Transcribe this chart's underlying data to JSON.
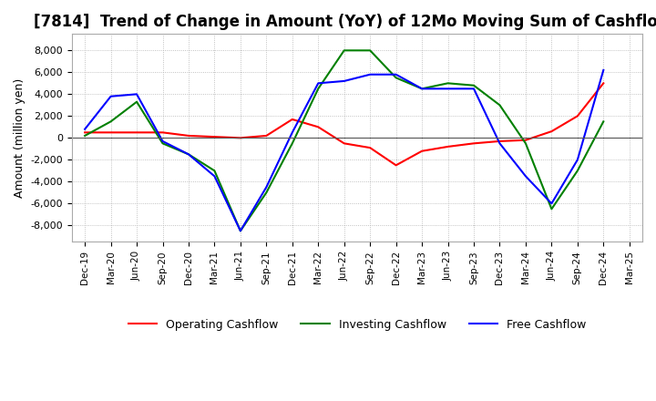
{
  "title": "[7814]  Trend of Change in Amount (YoY) of 12Mo Moving Sum of Cashflows",
  "ylabel": "Amount (million yen)",
  "x_labels": [
    "Dec-19",
    "Mar-20",
    "Jun-20",
    "Sep-20",
    "Dec-20",
    "Mar-21",
    "Jun-21",
    "Sep-21",
    "Dec-21",
    "Mar-22",
    "Jun-22",
    "Sep-22",
    "Dec-22",
    "Mar-23",
    "Jun-23",
    "Sep-23",
    "Dec-23",
    "Mar-24",
    "Jun-24",
    "Sep-24",
    "Dec-24",
    "Mar-25"
  ],
  "operating": [
    500,
    500,
    500,
    500,
    200,
    100,
    0,
    200,
    1700,
    1000,
    -500,
    -900,
    -2500,
    -1200,
    -800,
    -500,
    -300,
    -200,
    600,
    2000,
    5000,
    null
  ],
  "investing": [
    200,
    1500,
    3300,
    -500,
    -1500,
    -3000,
    -8500,
    -5000,
    -500,
    4500,
    8000,
    8000,
    5500,
    4500,
    5000,
    4800,
    3000,
    -500,
    -6500,
    -3000,
    1500,
    null
  ],
  "free": [
    800,
    3800,
    4000,
    -300,
    -1500,
    -3500,
    -8500,
    -4500,
    500,
    5000,
    5200,
    5800,
    5800,
    4500,
    4500,
    4500,
    -500,
    -3500,
    -6000,
    -2000,
    6200,
    null
  ],
  "ylim": [
    -9500,
    9500
  ],
  "yticks": [
    -8000,
    -6000,
    -4000,
    -2000,
    0,
    2000,
    4000,
    6000,
    8000
  ],
  "operating_color": "#ff0000",
  "investing_color": "#008000",
  "free_color": "#0000ff",
  "grid_color": "#b0b0b0",
  "background_color": "#ffffff",
  "title_fontsize": 12,
  "legend_labels": [
    "Operating Cashflow",
    "Investing Cashflow",
    "Free Cashflow"
  ]
}
